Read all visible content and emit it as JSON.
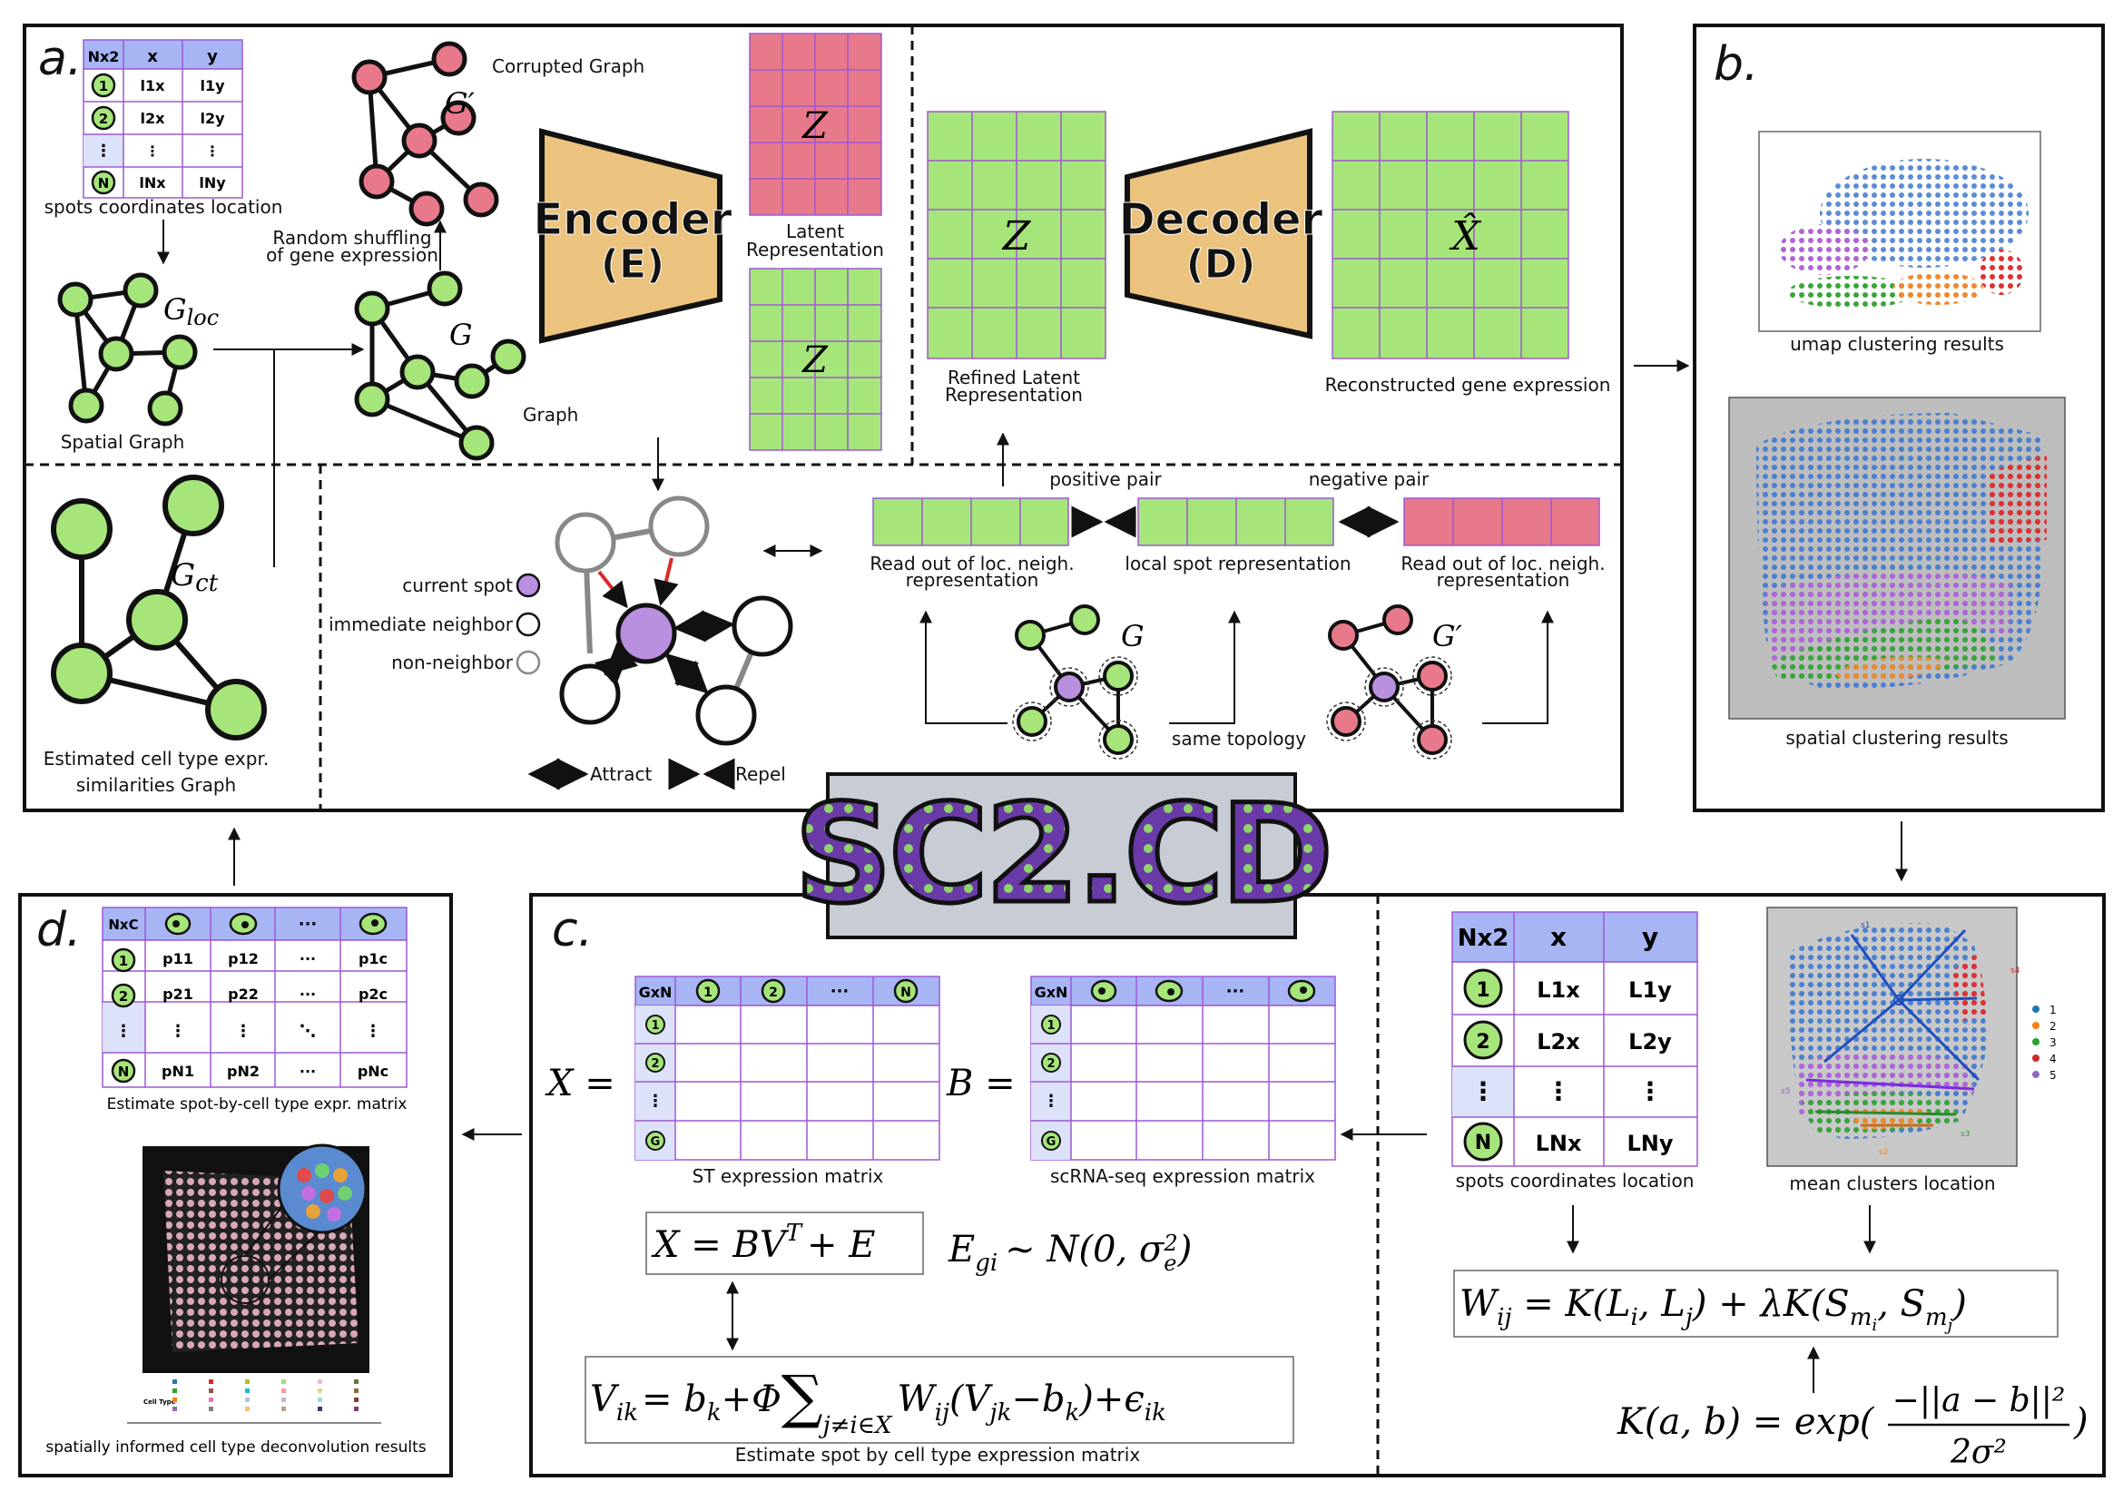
{
  "panels": {
    "a": "a.",
    "b": "b.",
    "c": "c.",
    "d": "d."
  },
  "panel_a": {
    "coords_table": {
      "header": [
        "Nx2",
        "x",
        "y"
      ],
      "rows": [
        [
          "1",
          "l1x",
          "l1y"
        ],
        [
          "2",
          "l2x",
          "l2y"
        ],
        [
          "⋮",
          "⋮",
          "⋮"
        ],
        [
          "N",
          "lNx",
          "lNy"
        ]
      ]
    },
    "spots_coords_label": "spots coordinates location",
    "spatial_graph_label": "Spatial Graph",
    "g_loc_symbol": "G_loc",
    "graph_label": "Graph",
    "g_symbol": "G",
    "g_prime_symbol": "G′",
    "corrupted_graph_label": "Corrupted Graph",
    "shuffle_label_1": "Random shuffling",
    "shuffle_label_2": "of gene expression",
    "encoder_title": "Encoder",
    "encoder_sub": "(E)",
    "decoder_title": "Decoder",
    "decoder_sub": "(D)",
    "z_symbol": "Z",
    "x_hat_symbol": "X̂",
    "latent_label_1": "Latent",
    "latent_label_2": "Representation",
    "refined_label_1": "Refined Latent",
    "refined_label_2": "Representation",
    "reconstructed_label": "Reconstructed gene expression",
    "g_ct_symbol": "G_ct",
    "est_celltype_label_1": "Estimated cell type expr.",
    "est_celltype_label_2": "similarities Graph",
    "legend": {
      "current_spot": "current spot",
      "immediate_neighbor": "immediate neighbor",
      "non_neighbor": "non-neighbor",
      "attract": "Attract",
      "repel": "Repel"
    },
    "positive_pair": "positive pair",
    "negative_pair": "negative pair",
    "readout_label_1": "Read out of loc. neigh.",
    "readout_label_2": "representation",
    "local_spot_label": "local spot representation",
    "same_topology": "same topology"
  },
  "panel_b": {
    "umap_label": "umap clustering results",
    "spatial_label": "spatial clustering results"
  },
  "logo": {
    "text": "SC2.CD"
  },
  "panel_c": {
    "gxn_table": {
      "header": [
        "GxN",
        "1",
        "2",
        "···",
        "N"
      ],
      "rows": [
        "1",
        "2",
        "⋮",
        "G"
      ]
    },
    "st_label": "ST expression matrix",
    "scrna_label": "scRNA-seq expression matrix",
    "x_eq": "X =",
    "b_eq": "B =",
    "model_eq": "X = BV",
    "model_sup": "T",
    "model_tail": "+ E",
    "noise_eq": "E",
    "noise_sub": "gi",
    "noise_rest": "~ N(0, σ",
    "noise_sub2": "e",
    "noise_sup2": "2",
    "noise_end": ")",
    "car_eq_left": "V",
    "car_eq_sub": "ik",
    "car_eq_mid": "= b",
    "car_eq_b_sub": "k",
    "car_eq_phi": "+Φ",
    "car_sum": "∑",
    "car_sum_sub": "j≠i∈X",
    "car_eq_right": "W",
    "car_w_sub": "ij",
    "car_eq_tail": "(V",
    "car_v_sub": "jk",
    "car_eq_tail2": "−b",
    "car_b_sub2": "k",
    "car_eq_tail3": ")+ϵ",
    "car_eps_sub": "ik",
    "car_label": "Estimate spot by cell type expression matrix",
    "coords_table": {
      "header": [
        "Nx2",
        "x",
        "y"
      ],
      "rows": [
        [
          "1",
          "L1x",
          "L1y"
        ],
        [
          "2",
          "L2x",
          "L2y"
        ],
        [
          "⋮",
          "⋮",
          "⋮"
        ],
        [
          "N",
          "LNx",
          "LNy"
        ]
      ]
    },
    "spots_coords_label": "spots coordinates location",
    "mean_clusters_label": "mean clusters location",
    "cluster_legend": [
      "1",
      "2",
      "3",
      "4",
      "5"
    ],
    "cluster_colors": [
      "#1f77b4",
      "#ff7f0e",
      "#2ca02c",
      "#d62728",
      "#9467bd"
    ],
    "w_eq": "W_ij = K(L_i, L_j) + λK(S_mi, S_mj)",
    "k_eq_left": "K(a, b) = exp(",
    "k_eq_num": "−||a − b||²",
    "k_eq_den": "2σ²",
    "k_eq_right": ")"
  },
  "panel_d": {
    "nxc_table": {
      "header": [
        "NxC",
        "cell",
        "cell",
        "···",
        "cell"
      ],
      "rows": [
        [
          "1",
          "p11",
          "p12",
          "···",
          "p1c"
        ],
        [
          "2",
          "p21",
          "p22",
          "···",
          "p2c"
        ],
        [
          "⋮",
          "⋮",
          "⋮",
          "⋱",
          "⋮"
        ],
        [
          "N",
          "pN1",
          "pN2",
          "···",
          "pNc"
        ]
      ]
    },
    "table_label": "Estimate spot-by-cell type expr. matrix",
    "deconv_label": "spatially informed cell type deconvolution results",
    "legend_title": "Cell Type"
  },
  "colors": {
    "green": "#a6e57a",
    "pink": "#e8798a",
    "purple": "#b98fe0",
    "table_header": "#a7b5f5",
    "encoder": "#ecc37e",
    "cyan": "#2ebed6",
    "red": "#d92b2b"
  }
}
